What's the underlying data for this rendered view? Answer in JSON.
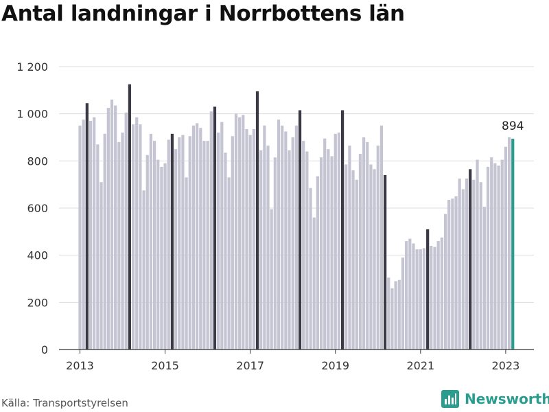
{
  "title": "Antal landningar i Norrbottens län",
  "source": "Källa: Transportstyrelsen",
  "brand": "Newsworthy",
  "brand_icon": "bar-chart-logo-icon",
  "colors": {
    "bar": "#c5c4d3",
    "highlight": "#3a3945",
    "latest": "#2a9d8f",
    "grid": "#dddddd",
    "axis": "#333333",
    "brand": "#2a9d8f"
  },
  "chart_data": {
    "type": "bar",
    "title": "Antal landningar i Norrbottens län",
    "xlabel": "",
    "ylabel": "",
    "ylim": [
      0,
      1200
    ],
    "yticks": [
      0,
      200,
      400,
      600,
      800,
      1000,
      1200
    ],
    "ytick_labels": [
      "0",
      "200",
      "400",
      "600",
      "800",
      "1 000",
      "1 200"
    ],
    "xtick_labels": [
      "2013",
      "2015",
      "2017",
      "2019",
      "2021",
      "2023"
    ],
    "grid": true,
    "start": "2013-01",
    "values": [
      950,
      975,
      1045,
      970,
      985,
      870,
      710,
      915,
      1025,
      1060,
      1035,
      880,
      920,
      1005,
      1125,
      955,
      985,
      955,
      675,
      825,
      915,
      885,
      805,
      775,
      790,
      890,
      915,
      850,
      900,
      910,
      730,
      905,
      950,
      960,
      940,
      885,
      885,
      1010,
      1030,
      920,
      965,
      835,
      730,
      905,
      1000,
      985,
      995,
      935,
      910,
      935,
      1095,
      845,
      950,
      865,
      595,
      815,
      975,
      950,
      925,
      845,
      900,
      950,
      1015,
      885,
      840,
      685,
      560,
      735,
      815,
      895,
      850,
      820,
      915,
      920,
      1015,
      785,
      865,
      760,
      720,
      830,
      900,
      880,
      785,
      765,
      865,
      950,
      740,
      305,
      260,
      290,
      295,
      390,
      460,
      470,
      450,
      425,
      425,
      430,
      510,
      440,
      435,
      460,
      475,
      575,
      635,
      640,
      650,
      725,
      680,
      725,
      765,
      720,
      805,
      710,
      605,
      775,
      815,
      790,
      780,
      805,
      860,
      900,
      894
    ],
    "highlight_month": 3,
    "latest_label": "894"
  }
}
